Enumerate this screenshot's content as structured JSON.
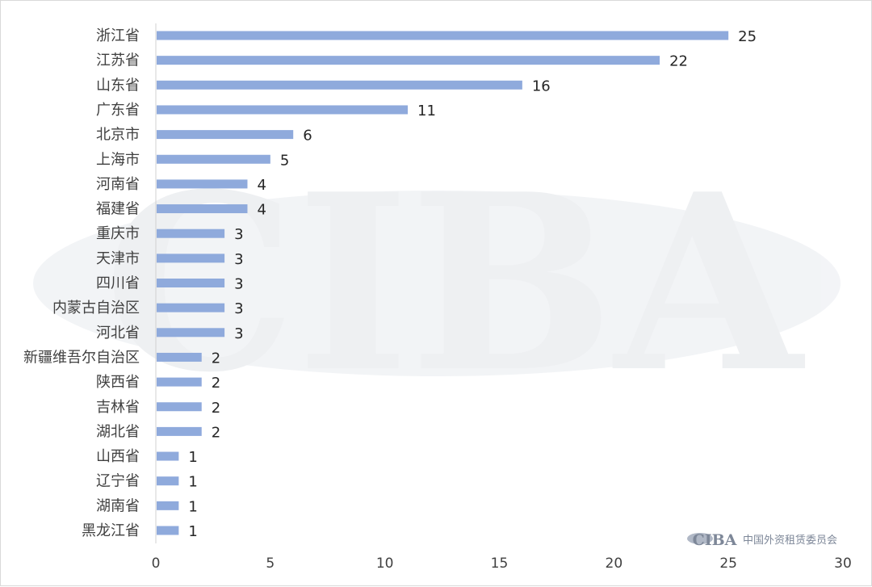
{
  "chart_data": {
    "type": "bar",
    "orientation": "horizontal",
    "categories": [
      "浙江省",
      "江苏省",
      "山东省",
      "广东省",
      "北京市",
      "上海市",
      "河南省",
      "福建省",
      "重庆市",
      "天津市",
      "四川省",
      "内蒙古自治区",
      "河北省",
      "新疆维吾尔自治区",
      "陕西省",
      "吉林省",
      "湖北省",
      "山西省",
      "辽宁省",
      "湖南省",
      "黑龙江省"
    ],
    "values": [
      25,
      22,
      16,
      11,
      6,
      5,
      4,
      4,
      3,
      3,
      3,
      3,
      3,
      2,
      2,
      2,
      2,
      1,
      1,
      1,
      1
    ],
    "xlim": [
      0,
      30
    ],
    "xticks": [
      "0",
      "5",
      "10",
      "15",
      "20",
      "25",
      "30"
    ],
    "title": "",
    "xlabel": "",
    "ylabel": "",
    "grid": false,
    "bar_color": "#8faadc"
  },
  "watermark": {
    "text": "CIBA"
  },
  "logo": {
    "mark": "CIBA",
    "org_name": "中国外资租赁委员会"
  }
}
